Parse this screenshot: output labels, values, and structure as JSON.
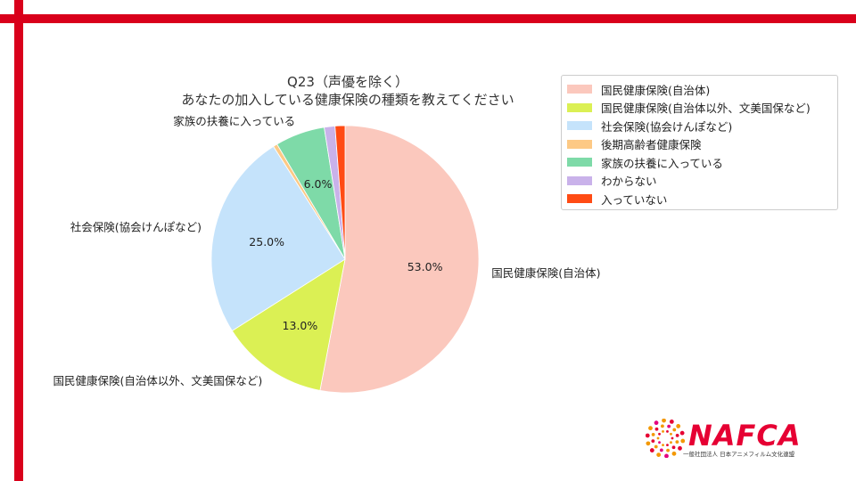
{
  "chart_data": {
    "type": "pie",
    "title_line1": "Q23（声優を除く）",
    "title_line2": "あなたの加入している健康保険の種類を教えてください",
    "slices": [
      {
        "label": "国民健康保険(自治体)",
        "value": 53.0,
        "pct_label": "53.0%",
        "color": "#fbc8bd"
      },
      {
        "label": "国民健康保険(自治体以外、文美国保など)",
        "value": 13.0,
        "pct_label": "13.0%",
        "color": "#dbf054"
      },
      {
        "label": "社会保険(協会けんぽなど)",
        "value": 25.0,
        "pct_label": "25.0%",
        "color": "#c5e3fb"
      },
      {
        "label": "後期高齢者健康保険",
        "value": 0.5,
        "pct_label": "",
        "color": "#fdc985"
      },
      {
        "label": "家族の扶養に入っている",
        "value": 6.0,
        "pct_label": "6.0%",
        "color": "#7edaa8"
      },
      {
        "label": "わからない",
        "value": 1.3,
        "pct_label": "",
        "color": "#c9b2ea"
      },
      {
        "label": "入っていない",
        "value": 1.2,
        "pct_label": "",
        "color": "#ff4b14"
      }
    ],
    "outer_labels": [
      {
        "slice": 0,
        "text": "国民健康保険(自治体)"
      },
      {
        "slice": 1,
        "text": "国民健康保険(自治体以外、文美国保など)"
      },
      {
        "slice": 2,
        "text": "社会保険(協会けんぽなど)"
      },
      {
        "slice": 4,
        "text": "家族の扶養に入っている"
      }
    ],
    "legend_position": "top-right"
  },
  "logo": {
    "text": "NAFCA",
    "subtitle": "一般社団法人 日本アニメフィルム文化連盟",
    "accent_color": "#e60033"
  },
  "frame": {
    "accent_color": "#d9001b"
  }
}
